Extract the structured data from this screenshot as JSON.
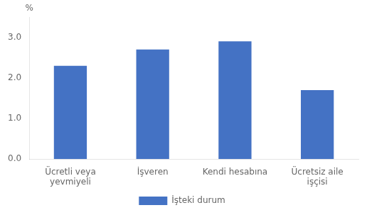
{
  "chart_data": {
    "type": "bar",
    "categories": [
      "Ücretli veya\nyevmiyeli",
      "İşveren",
      "Kendi hesabına",
      "Ücretsiz aile\nişçisi"
    ],
    "series": [
      {
        "name": "İşteki durum",
        "color": "#4472c4",
        "values": [
          2.3,
          2.7,
          2.9,
          1.7
        ]
      }
    ],
    "ylim": [
      0,
      3.5
    ],
    "yticks": [
      {
        "value": 0.0,
        "label": "0.0"
      },
      {
        "value": 1.0,
        "label": "1.0"
      },
      {
        "value": 2.0,
        "label": "2.0"
      },
      {
        "value": 3.0,
        "label": "3.0"
      }
    ],
    "annotations": [
      "%"
    ],
    "grid": false,
    "legend": "bottom"
  }
}
